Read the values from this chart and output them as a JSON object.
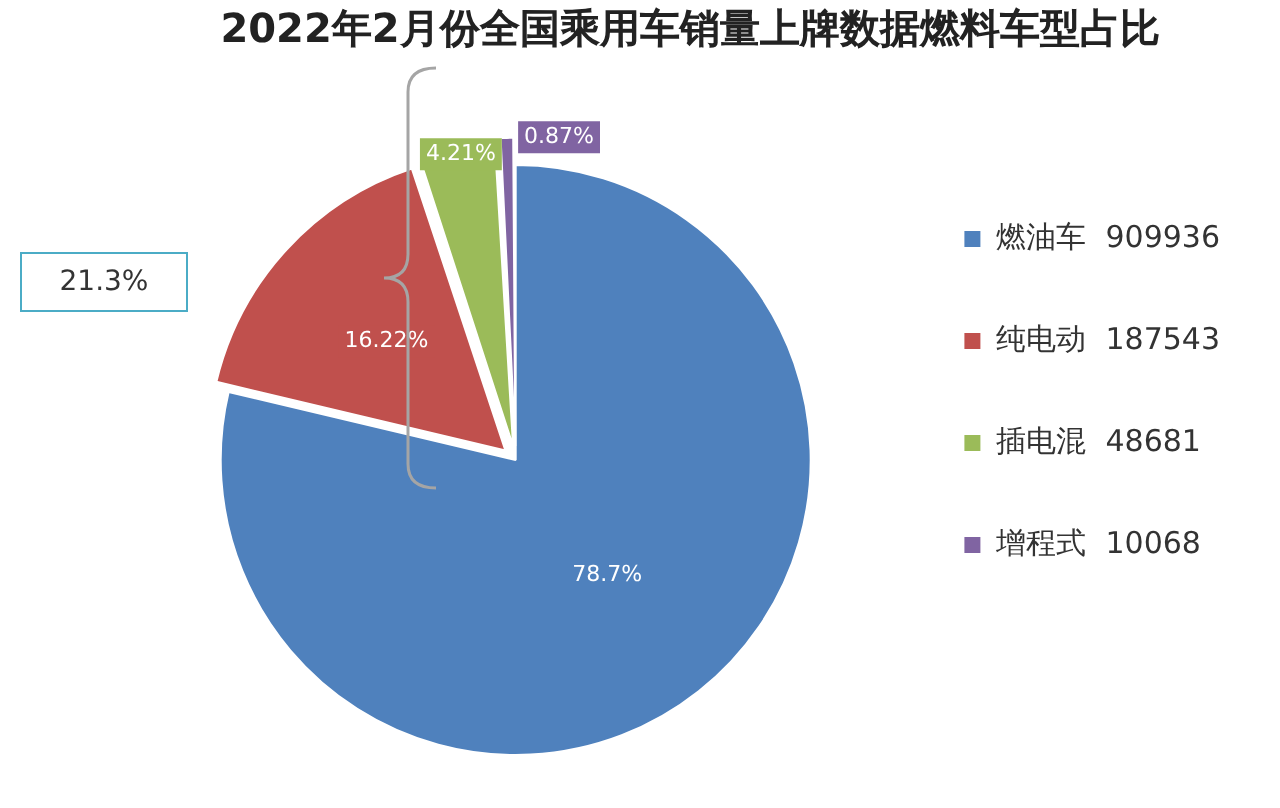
{
  "chart_data": {
    "type": "pie",
    "title": "2022年2月份全国乘用车销量上牌数据燃料车型占比",
    "categories": [
      "燃油车  909936",
      "纯电动  187543",
      "插电混  48681",
      "增程式  10068"
    ],
    "values": [
      78.7,
      16.22,
      4.21,
      0.87
    ],
    "value_labels": [
      "78.7%",
      "16.22%",
      "4.21%",
      "0.87%"
    ],
    "colors": [
      "#4f81bd",
      "#c0504d",
      "#9bbb59",
      "#8064a2"
    ],
    "annotations": [
      "21.3%"
    ],
    "legend": "right"
  }
}
